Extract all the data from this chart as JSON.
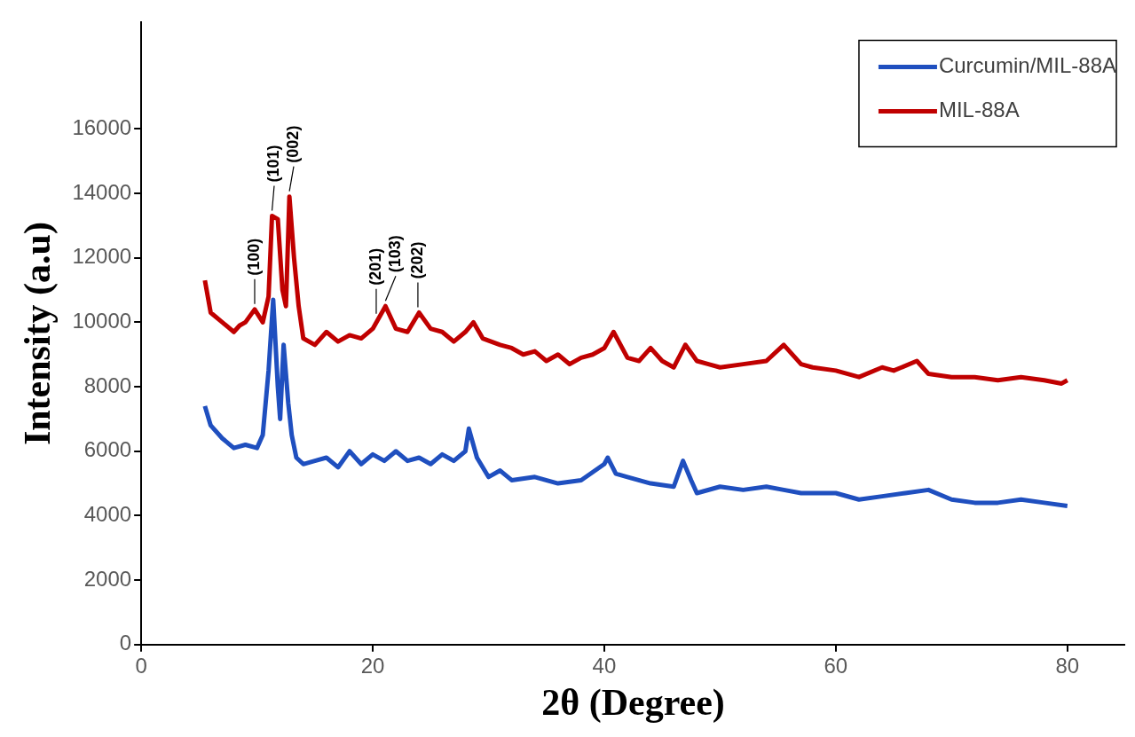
{
  "chart_data": {
    "type": "line",
    "xlabel": "2θ (Degree)",
    "ylabel": "Intensity (a.u)",
    "xlim": [
      0,
      85
    ],
    "xticks": [
      0,
      20,
      40,
      60,
      80
    ],
    "ylim": [
      0,
      19300
    ],
    "yticks": [
      0,
      2000,
      4000,
      6000,
      8000,
      10000,
      12000,
      14000,
      16000
    ],
    "grid": false,
    "legend": "top right",
    "marker": "none",
    "line_style": "solid",
    "series": [
      {
        "name": "Curcumin/MIL-88A",
        "color": "#1f4fbf",
        "x": [
          5.5,
          6,
          7,
          8,
          9,
          10,
          10.5,
          11,
          11.4,
          11.8,
          12,
          12.3,
          12.7,
          13,
          13.4,
          14,
          15,
          16,
          17,
          18,
          19,
          20,
          21,
          22,
          23,
          24,
          25,
          26,
          27,
          28,
          28.3,
          29,
          30,
          31,
          32,
          34,
          36,
          38,
          40,
          40.3,
          41,
          42,
          44,
          46,
          46.8,
          47.5,
          48,
          50,
          52,
          54,
          55.5,
          57,
          60,
          62,
          64,
          66,
          68,
          70,
          72,
          74,
          76,
          78,
          80
        ],
        "values": [
          7400,
          6800,
          6400,
          6100,
          6200,
          6100,
          6500,
          8500,
          10700,
          8000,
          7000,
          9300,
          7500,
          6500,
          5800,
          5600,
          5700,
          5800,
          5500,
          6000,
          5600,
          5900,
          5700,
          6000,
          5700,
          5800,
          5600,
          5900,
          5700,
          6000,
          6700,
          5800,
          5200,
          5400,
          5100,
          5200,
          5000,
          5100,
          5600,
          5800,
          5300,
          5200,
          5000,
          4900,
          5700,
          5100,
          4700,
          4900,
          4800,
          4900,
          4800,
          4700,
          4700,
          4500,
          4600,
          4700,
          4800,
          4500,
          4400,
          4400,
          4500,
          4400,
          4300
        ]
      },
      {
        "name": "MIL-88A",
        "color": "#c00000",
        "x": [
          5.5,
          6,
          7,
          8,
          8.5,
          9,
          9.8,
          10.5,
          11,
          11.3,
          11.8,
          12.2,
          12.5,
          12.8,
          13.2,
          13.6,
          14,
          15,
          16,
          17,
          18,
          19,
          20,
          21.1,
          22,
          23,
          24,
          25,
          26,
          27,
          28,
          28.7,
          29.5,
          31,
          32,
          33,
          34,
          35,
          36,
          37,
          38,
          39,
          40,
          40.8,
          42,
          43,
          44,
          45,
          46,
          47,
          48,
          49,
          50,
          52,
          54,
          55.5,
          57,
          58,
          60,
          62,
          64,
          65,
          67,
          68,
          70,
          72,
          74,
          76,
          78,
          79.5,
          80
        ],
        "values": [
          11300,
          10300,
          10000,
          9700,
          9900,
          10000,
          10400,
          10000,
          10800,
          13300,
          13200,
          11000,
          10500,
          13900,
          12000,
          10500,
          9500,
          9300,
          9700,
          9400,
          9600,
          9500,
          9800,
          10500,
          9800,
          9700,
          10300,
          9800,
          9700,
          9400,
          9700,
          10000,
          9500,
          9300,
          9200,
          9000,
          9100,
          8800,
          9000,
          8700,
          8900,
          9000,
          9200,
          9700,
          8900,
          8800,
          9200,
          8800,
          8600,
          9300,
          8800,
          8700,
          8600,
          8700,
          8800,
          9300,
          8700,
          8600,
          8500,
          8300,
          8600,
          8500,
          8800,
          8400,
          8300,
          8300,
          8200,
          8300,
          8200,
          8100,
          8200
        ]
      }
    ],
    "annotations": [
      {
        "text": "(100)",
        "x": 9.8,
        "y": 10400
      },
      {
        "text": "(101)",
        "x": 11.3,
        "y": 13300
      },
      {
        "text": "(002)",
        "x": 12.8,
        "y": 13900
      },
      {
        "text": "(201)",
        "x": 20.3,
        "y": 10100
      },
      {
        "text": "(103)",
        "x": 21.1,
        "y": 10500
      },
      {
        "text": "(202)",
        "x": 23.9,
        "y": 10300
      }
    ]
  }
}
